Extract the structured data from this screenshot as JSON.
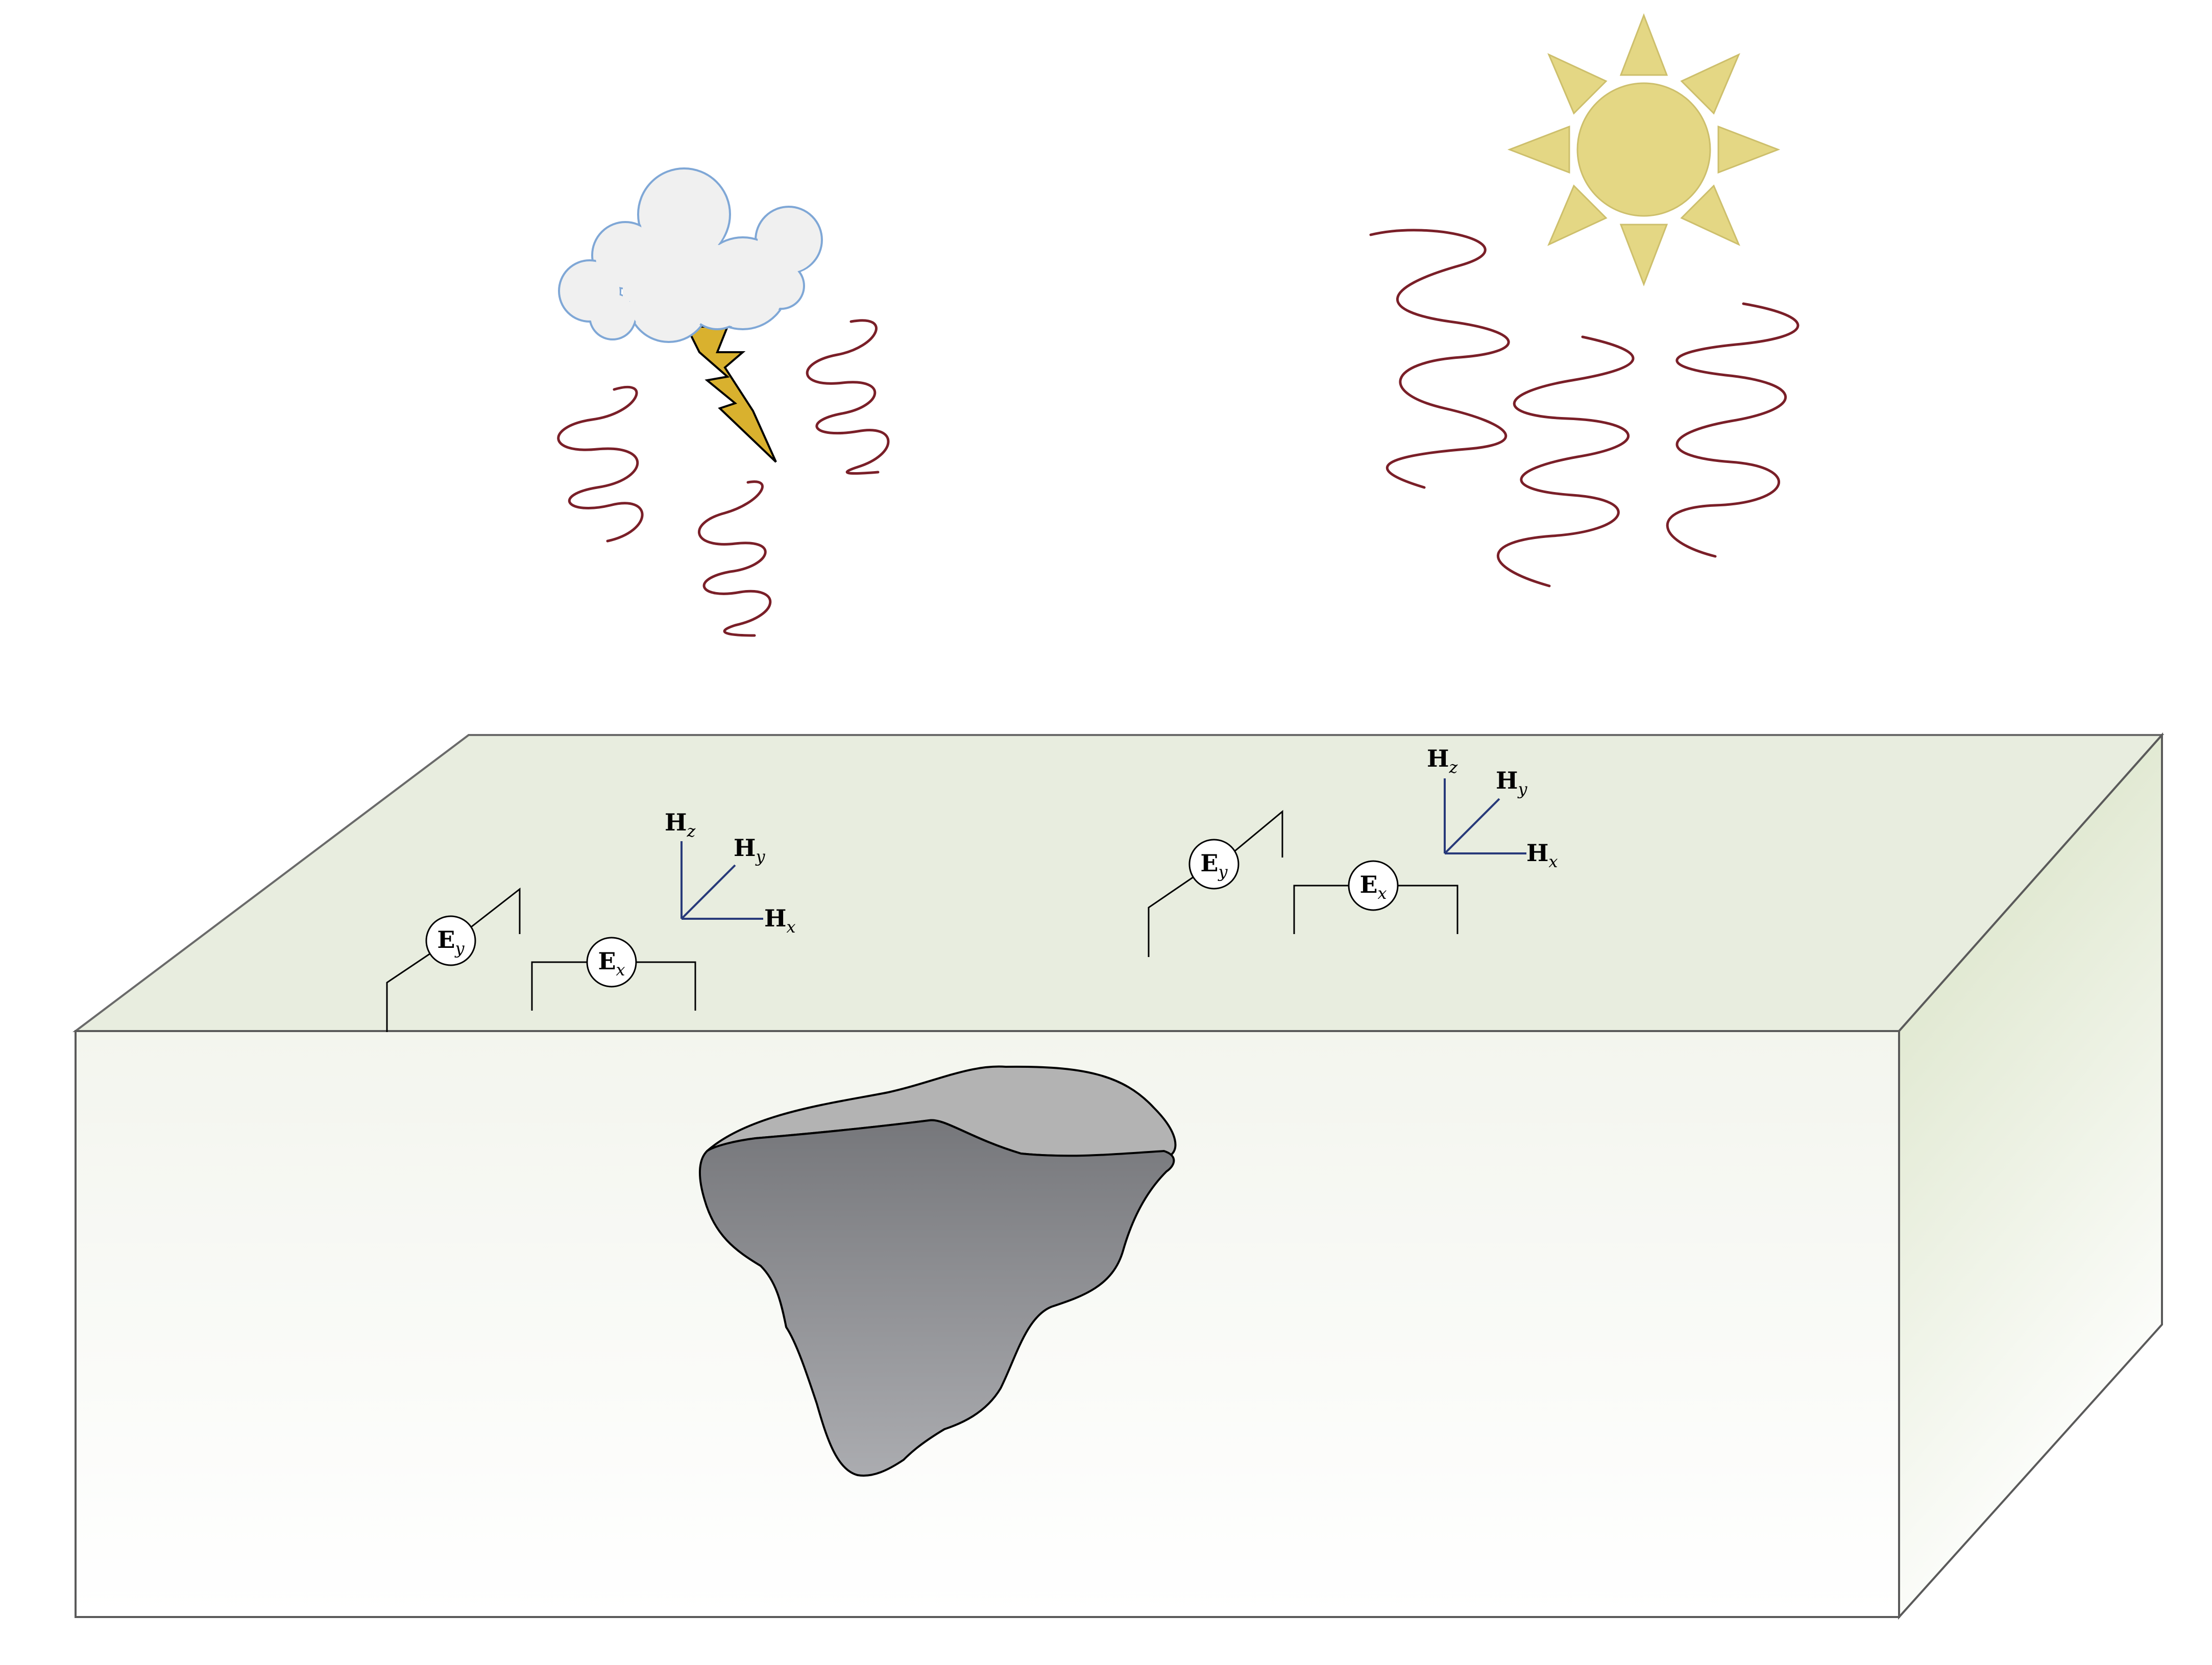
{
  "colors": {
    "box_top": "#e8eddf",
    "box_front_top": "#f3f5ee",
    "box_front_bottom": "#ffffff",
    "box_side_top": "#d5e0c0",
    "box_side_bottom": "#ffffff",
    "box_edge": "#5a5a5a",
    "body_dark_top": "#76777b",
    "body_dark_bottom": "#abacb0",
    "body_light": "#b3b3b3",
    "wave": "#7a1f28",
    "axis": "#283a7a",
    "sun": "#e4d784",
    "sun_edge": "#cdbf6c",
    "cloud_fill": "#f0f0f0",
    "cloud_edge": "#7fa7d6",
    "bolt": "#d9b12e"
  },
  "icons": {
    "sun": "sun-icon",
    "cloud": "storm-cloud-icon",
    "lightning": "lightning-bolt-icon"
  },
  "stations": [
    {
      "ey": {
        "main": "E",
        "sub": "y"
      },
      "ex": {
        "main": "E",
        "sub": "x"
      },
      "hz": {
        "main": "H",
        "sub": "z"
      },
      "hy": {
        "main": "H",
        "sub": "y"
      },
      "hx": {
        "main": "H",
        "sub": "x"
      }
    },
    {
      "ey": {
        "main": "E",
        "sub": "y"
      },
      "ex": {
        "main": "E",
        "sub": "x"
      },
      "hz": {
        "main": "H",
        "sub": "z"
      },
      "hy": {
        "main": "H",
        "sub": "y"
      },
      "hx": {
        "main": "H",
        "sub": "x"
      }
    }
  ]
}
